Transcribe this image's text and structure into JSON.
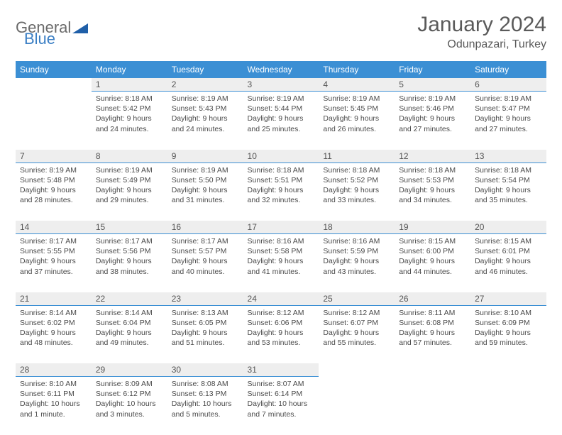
{
  "brand": {
    "name_a": "General",
    "name_b": "Blue"
  },
  "title": "January 2024",
  "location": "Odunpazari, Turkey",
  "weekdays": [
    "Sunday",
    "Monday",
    "Tuesday",
    "Wednesday",
    "Thursday",
    "Friday",
    "Saturday"
  ],
  "colors": {
    "header_bg": "#3b8fd4",
    "daynum_bg": "#eeeeee",
    "rule": "#3b8fd4",
    "text": "#4a4a4a"
  },
  "weeks": [
    {
      "nums": [
        "",
        "1",
        "2",
        "3",
        "4",
        "5",
        "6"
      ],
      "cells": [
        {},
        {
          "sr": "Sunrise: 8:18 AM",
          "ss": "Sunset: 5:42 PM",
          "dl": "Daylight: 9 hours and 24 minutes."
        },
        {
          "sr": "Sunrise: 8:19 AM",
          "ss": "Sunset: 5:43 PM",
          "dl": "Daylight: 9 hours and 24 minutes."
        },
        {
          "sr": "Sunrise: 8:19 AM",
          "ss": "Sunset: 5:44 PM",
          "dl": "Daylight: 9 hours and 25 minutes."
        },
        {
          "sr": "Sunrise: 8:19 AM",
          "ss": "Sunset: 5:45 PM",
          "dl": "Daylight: 9 hours and 26 minutes."
        },
        {
          "sr": "Sunrise: 8:19 AM",
          "ss": "Sunset: 5:46 PM",
          "dl": "Daylight: 9 hours and 27 minutes."
        },
        {
          "sr": "Sunrise: 8:19 AM",
          "ss": "Sunset: 5:47 PM",
          "dl": "Daylight: 9 hours and 27 minutes."
        }
      ]
    },
    {
      "nums": [
        "7",
        "8",
        "9",
        "10",
        "11",
        "12",
        "13"
      ],
      "cells": [
        {
          "sr": "Sunrise: 8:19 AM",
          "ss": "Sunset: 5:48 PM",
          "dl": "Daylight: 9 hours and 28 minutes."
        },
        {
          "sr": "Sunrise: 8:19 AM",
          "ss": "Sunset: 5:49 PM",
          "dl": "Daylight: 9 hours and 29 minutes."
        },
        {
          "sr": "Sunrise: 8:19 AM",
          "ss": "Sunset: 5:50 PM",
          "dl": "Daylight: 9 hours and 31 minutes."
        },
        {
          "sr": "Sunrise: 8:18 AM",
          "ss": "Sunset: 5:51 PM",
          "dl": "Daylight: 9 hours and 32 minutes."
        },
        {
          "sr": "Sunrise: 8:18 AM",
          "ss": "Sunset: 5:52 PM",
          "dl": "Daylight: 9 hours and 33 minutes."
        },
        {
          "sr": "Sunrise: 8:18 AM",
          "ss": "Sunset: 5:53 PM",
          "dl": "Daylight: 9 hours and 34 minutes."
        },
        {
          "sr": "Sunrise: 8:18 AM",
          "ss": "Sunset: 5:54 PM",
          "dl": "Daylight: 9 hours and 35 minutes."
        }
      ]
    },
    {
      "nums": [
        "14",
        "15",
        "16",
        "17",
        "18",
        "19",
        "20"
      ],
      "cells": [
        {
          "sr": "Sunrise: 8:17 AM",
          "ss": "Sunset: 5:55 PM",
          "dl": "Daylight: 9 hours and 37 minutes."
        },
        {
          "sr": "Sunrise: 8:17 AM",
          "ss": "Sunset: 5:56 PM",
          "dl": "Daylight: 9 hours and 38 minutes."
        },
        {
          "sr": "Sunrise: 8:17 AM",
          "ss": "Sunset: 5:57 PM",
          "dl": "Daylight: 9 hours and 40 minutes."
        },
        {
          "sr": "Sunrise: 8:16 AM",
          "ss": "Sunset: 5:58 PM",
          "dl": "Daylight: 9 hours and 41 minutes."
        },
        {
          "sr": "Sunrise: 8:16 AM",
          "ss": "Sunset: 5:59 PM",
          "dl": "Daylight: 9 hours and 43 minutes."
        },
        {
          "sr": "Sunrise: 8:15 AM",
          "ss": "Sunset: 6:00 PM",
          "dl": "Daylight: 9 hours and 44 minutes."
        },
        {
          "sr": "Sunrise: 8:15 AM",
          "ss": "Sunset: 6:01 PM",
          "dl": "Daylight: 9 hours and 46 minutes."
        }
      ]
    },
    {
      "nums": [
        "21",
        "22",
        "23",
        "24",
        "25",
        "26",
        "27"
      ],
      "cells": [
        {
          "sr": "Sunrise: 8:14 AM",
          "ss": "Sunset: 6:02 PM",
          "dl": "Daylight: 9 hours and 48 minutes."
        },
        {
          "sr": "Sunrise: 8:14 AM",
          "ss": "Sunset: 6:04 PM",
          "dl": "Daylight: 9 hours and 49 minutes."
        },
        {
          "sr": "Sunrise: 8:13 AM",
          "ss": "Sunset: 6:05 PM",
          "dl": "Daylight: 9 hours and 51 minutes."
        },
        {
          "sr": "Sunrise: 8:12 AM",
          "ss": "Sunset: 6:06 PM",
          "dl": "Daylight: 9 hours and 53 minutes."
        },
        {
          "sr": "Sunrise: 8:12 AM",
          "ss": "Sunset: 6:07 PM",
          "dl": "Daylight: 9 hours and 55 minutes."
        },
        {
          "sr": "Sunrise: 8:11 AM",
          "ss": "Sunset: 6:08 PM",
          "dl": "Daylight: 9 hours and 57 minutes."
        },
        {
          "sr": "Sunrise: 8:10 AM",
          "ss": "Sunset: 6:09 PM",
          "dl": "Daylight: 9 hours and 59 minutes."
        }
      ]
    },
    {
      "nums": [
        "28",
        "29",
        "30",
        "31",
        "",
        "",
        ""
      ],
      "cells": [
        {
          "sr": "Sunrise: 8:10 AM",
          "ss": "Sunset: 6:11 PM",
          "dl": "Daylight: 10 hours and 1 minute."
        },
        {
          "sr": "Sunrise: 8:09 AM",
          "ss": "Sunset: 6:12 PM",
          "dl": "Daylight: 10 hours and 3 minutes."
        },
        {
          "sr": "Sunrise: 8:08 AM",
          "ss": "Sunset: 6:13 PM",
          "dl": "Daylight: 10 hours and 5 minutes."
        },
        {
          "sr": "Sunrise: 8:07 AM",
          "ss": "Sunset: 6:14 PM",
          "dl": "Daylight: 10 hours and 7 minutes."
        },
        {},
        {},
        {}
      ]
    }
  ]
}
